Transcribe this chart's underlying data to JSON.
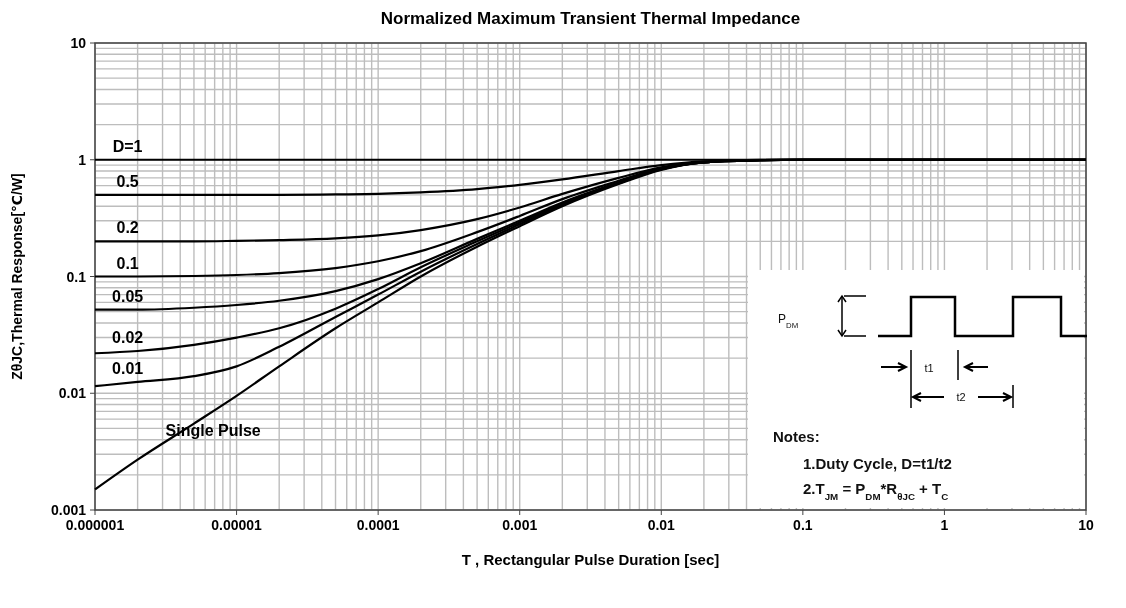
{
  "chart_data": {
    "type": "line",
    "title": "Normalized Maximum Transient Thermal Impedance",
    "xlabel": "T , Rectangular Pulse Duration [sec]",
    "ylabel": "ZθJC,Thermal Response[℃/W]",
    "x": [
      1e-06,
      2e-06,
      5e-06,
      1e-05,
      2e-05,
      5e-05,
      0.0001,
      0.0002,
      0.0005,
      0.001,
      0.002,
      0.005,
      0.01,
      0.02,
      0.05,
      0.1,
      1,
      10
    ],
    "series": [
      {
        "name": "D=1",
        "color": "#000000",
        "values": [
          1,
          1,
          1,
          1,
          1,
          1,
          1,
          1,
          1,
          1,
          1,
          1,
          1,
          1,
          1,
          1,
          1,
          1
        ]
      },
      {
        "name": "0.5",
        "color": "#000000",
        "values": [
          0.5,
          0.5,
          0.5,
          0.5,
          0.5,
          0.505,
          0.51,
          0.525,
          0.56,
          0.61,
          0.68,
          0.8,
          0.9,
          0.97,
          1,
          1,
          1,
          1
        ]
      },
      {
        "name": "0.2",
        "color": "#000000",
        "values": [
          0.2,
          0.2,
          0.2,
          0.202,
          0.205,
          0.212,
          0.225,
          0.25,
          0.31,
          0.39,
          0.51,
          0.7,
          0.86,
          0.96,
          0.99,
          1,
          1,
          1
        ]
      },
      {
        "name": "0.1",
        "color": "#000000",
        "values": [
          0.1,
          0.1,
          0.101,
          0.103,
          0.107,
          0.118,
          0.135,
          0.165,
          0.24,
          0.33,
          0.46,
          0.66,
          0.85,
          0.95,
          0.99,
          1,
          1,
          1
        ]
      },
      {
        "name": "0.05",
        "color": "#000000",
        "values": [
          0.052,
          0.052,
          0.054,
          0.057,
          0.062,
          0.075,
          0.095,
          0.13,
          0.21,
          0.3,
          0.43,
          0.64,
          0.84,
          0.95,
          0.99,
          1,
          1,
          1
        ]
      },
      {
        "name": "0.02",
        "color": "#000000",
        "values": [
          0.022,
          0.023,
          0.026,
          0.03,
          0.036,
          0.053,
          0.078,
          0.12,
          0.2,
          0.29,
          0.42,
          0.63,
          0.83,
          0.95,
          0.99,
          1,
          1,
          1
        ]
      },
      {
        "name": "0.01",
        "color": "#000000",
        "values": [
          0.0115,
          0.0125,
          0.014,
          0.017,
          0.025,
          0.045,
          0.07,
          0.11,
          0.19,
          0.28,
          0.41,
          0.63,
          0.83,
          0.95,
          0.99,
          1,
          1,
          1
        ]
      },
      {
        "name": "Single Pulse",
        "color": "#000000",
        "values": [
          0.0015,
          0.0027,
          0.0055,
          0.0095,
          0.017,
          0.036,
          0.06,
          0.1,
          0.18,
          0.27,
          0.4,
          0.62,
          0.82,
          0.95,
          0.99,
          1,
          1,
          1
        ]
      }
    ],
    "xlim": [
      1e-06,
      10
    ],
    "ylim": [
      0.001,
      10
    ],
    "xticks": [
      {
        "value": 1e-06,
        "label": "0.000001"
      },
      {
        "value": 1e-05,
        "label": "0.00001"
      },
      {
        "value": 0.0001,
        "label": "0.0001"
      },
      0.001,
      0.01,
      0.1,
      1,
      10
    ],
    "yticks": [
      0.001,
      0.01,
      0.1,
      1,
      10
    ],
    "log": "xy",
    "grid": true,
    "marker": "none",
    "line_style": "solid",
    "annotations": [
      "P$_{DM}$",
      "t1",
      "t2",
      "Notes:",
      "1.Duty  Cycle, D=t1/t2",
      "2.T$_{JM}$ = P$_{DM}$*R$_{θJC}$ + T$_{C}$"
    ]
  }
}
